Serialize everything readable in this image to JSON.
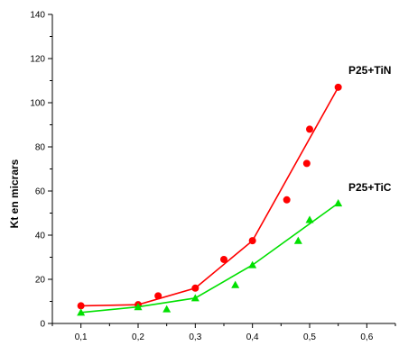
{
  "chart_data": {
    "type": "scatter",
    "title": "",
    "xlabel": "",
    "ylabel": "Kt en micrars",
    "xlim": [
      0.05,
      0.65
    ],
    "ylim": [
      0,
      140
    ],
    "x_ticks": [
      0.1,
      0.2,
      0.3,
      0.4,
      0.5,
      0.6
    ],
    "x_tick_labels": [
      "0,1",
      "0,2",
      "0,3",
      "0,4",
      "0,5",
      "0,6"
    ],
    "y_ticks": [
      0,
      20,
      40,
      60,
      80,
      100,
      120,
      140
    ],
    "y_tick_labels": [
      "0",
      "20",
      "40",
      "60",
      "80",
      "100",
      "120",
      "140"
    ],
    "grid": false,
    "legend": "none",
    "series": [
      {
        "name": "P25+TiN",
        "color": "#ff0000",
        "marker": "circle",
        "points": [
          {
            "x": 0.1,
            "y": 8
          },
          {
            "x": 0.2,
            "y": 8.5
          },
          {
            "x": 0.235,
            "y": 12.5
          },
          {
            "x": 0.3,
            "y": 16
          },
          {
            "x": 0.35,
            "y": 29
          },
          {
            "x": 0.4,
            "y": 37.5
          },
          {
            "x": 0.46,
            "y": 56
          },
          {
            "x": 0.495,
            "y": 72.5
          },
          {
            "x": 0.5,
            "y": 88
          },
          {
            "x": 0.55,
            "y": 107
          }
        ],
        "fit": [
          {
            "x": 0.1,
            "y": 8
          },
          {
            "x": 0.2,
            "y": 8.5
          },
          {
            "x": 0.3,
            "y": 16
          },
          {
            "x": 0.4,
            "y": 37.5
          },
          {
            "x": 0.55,
            "y": 107
          }
        ]
      },
      {
        "name": "P25+TiC",
        "color": "#00e000",
        "marker": "triangle",
        "points": [
          {
            "x": 0.1,
            "y": 5
          },
          {
            "x": 0.2,
            "y": 7.5
          },
          {
            "x": 0.25,
            "y": 6.5
          },
          {
            "x": 0.3,
            "y": 11.5
          },
          {
            "x": 0.37,
            "y": 17.5
          },
          {
            "x": 0.4,
            "y": 26.5
          },
          {
            "x": 0.48,
            "y": 37.5
          },
          {
            "x": 0.5,
            "y": 47
          },
          {
            "x": 0.55,
            "y": 54.5
          }
        ],
        "fit": [
          {
            "x": 0.1,
            "y": 5
          },
          {
            "x": 0.2,
            "y": 7.5
          },
          {
            "x": 0.3,
            "y": 11.5
          },
          {
            "x": 0.4,
            "y": 26.5
          },
          {
            "x": 0.55,
            "y": 54.5
          }
        ]
      }
    ]
  },
  "labels": {
    "series_tin": "P25+TiN",
    "series_tic": "P25+TiC"
  }
}
